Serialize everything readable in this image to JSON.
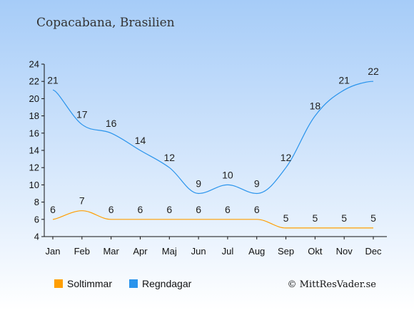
{
  "chart_data": {
    "type": "line",
    "title": "Copacabana, Brasilien",
    "categories": [
      "Jan",
      "Feb",
      "Mar",
      "Apr",
      "Maj",
      "Jun",
      "Jul",
      "Aug",
      "Sep",
      "Okt",
      "Nov",
      "Dec"
    ],
    "series": [
      {
        "name": "Soltimmar",
        "color": "#ff9e00",
        "values": [
          6,
          7,
          6,
          6,
          6,
          6,
          6,
          6,
          5,
          5,
          5,
          5
        ]
      },
      {
        "name": "Regndagar",
        "color": "#2a94ec",
        "values": [
          21,
          17,
          16,
          14,
          12,
          9,
          10,
          9,
          12,
          18,
          21,
          22
        ]
      }
    ],
    "yticks": [
      4,
      6,
      8,
      10,
      12,
      14,
      16,
      18,
      20,
      22,
      24
    ],
    "ylim": [
      4,
      24
    ],
    "grid": false,
    "legend_position": "bottom-left",
    "credit": "© MittResVader.se"
  }
}
